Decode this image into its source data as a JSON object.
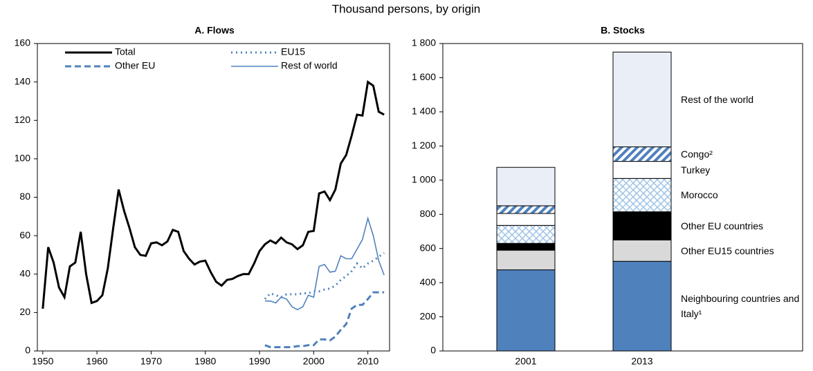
{
  "title": "Thousand persons, by origin",
  "chart_data": [
    {
      "type": "line",
      "title": "A. Flows",
      "x": [
        1950,
        1951,
        1952,
        1953,
        1954,
        1955,
        1956,
        1957,
        1958,
        1959,
        1960,
        1961,
        1962,
        1963,
        1964,
        1965,
        1966,
        1967,
        1968,
        1969,
        1970,
        1971,
        1972,
        1973,
        1974,
        1975,
        1976,
        1977,
        1978,
        1979,
        1980,
        1981,
        1982,
        1983,
        1984,
        1985,
        1986,
        1987,
        1988,
        1989,
        1990,
        1991,
        1992,
        1993,
        1994,
        1995,
        1996,
        1997,
        1998,
        1999,
        2000,
        2001,
        2002,
        2003,
        2004,
        2005,
        2006,
        2007,
        2008,
        2009,
        2010,
        2011,
        2012,
        2013
      ],
      "series": [
        {
          "name": "Total",
          "color": "#000000",
          "style": "solid",
          "width": 3,
          "values": [
            22,
            54,
            46,
            33,
            28,
            44,
            46,
            62,
            40,
            25,
            26,
            29,
            43,
            64,
            84,
            73,
            64,
            54,
            50,
            49.5,
            56,
            56.5,
            55,
            57,
            63,
            62,
            52,
            48,
            45,
            46.5,
            47,
            41,
            36,
            34,
            37,
            37.5,
            39,
            40,
            40,
            45.5,
            52,
            55.5,
            57.5,
            56,
            59,
            56.5,
            55.5,
            53,
            55,
            62,
            62.5,
            82,
            83,
            78.5,
            84,
            97.5,
            102,
            112,
            123,
            122.5,
            140,
            138,
            124.5,
            123
          ]
        },
        {
          "name": "EU15",
          "color": "#4f81bd",
          "style": "dotted",
          "width": 3,
          "values": [
            null,
            null,
            null,
            null,
            null,
            null,
            null,
            null,
            null,
            null,
            null,
            null,
            null,
            null,
            null,
            null,
            null,
            null,
            null,
            null,
            null,
            null,
            null,
            null,
            null,
            null,
            null,
            null,
            null,
            null,
            null,
            null,
            null,
            null,
            null,
            null,
            null,
            null,
            null,
            null,
            null,
            27,
            30,
            29,
            28,
            29.5,
            29.5,
            29.5,
            30,
            30,
            31,
            31,
            32,
            32.5,
            34,
            37,
            39,
            41.5,
            45.5,
            43,
            45.5,
            47,
            49,
            51
          ]
        },
        {
          "name": "Other EU",
          "color": "#4f81bd",
          "style": "dashed",
          "width": 3,
          "values": [
            null,
            null,
            null,
            null,
            null,
            null,
            null,
            null,
            null,
            null,
            null,
            null,
            null,
            null,
            null,
            null,
            null,
            null,
            null,
            null,
            null,
            null,
            null,
            null,
            null,
            null,
            null,
            null,
            null,
            null,
            null,
            null,
            null,
            null,
            null,
            null,
            null,
            null,
            null,
            null,
            null,
            3,
            2,
            2,
            2,
            2,
            2,
            2.5,
            2.5,
            3,
            3,
            6,
            6,
            5.5,
            7.5,
            11,
            14,
            22,
            24,
            24,
            27,
            30.5,
            30.5,
            30.5
          ]
        },
        {
          "name": "Rest of world",
          "color": "#4f81bd",
          "style": "solid",
          "width": 1.6,
          "values": [
            null,
            null,
            null,
            null,
            null,
            null,
            null,
            null,
            null,
            null,
            null,
            null,
            null,
            null,
            null,
            null,
            null,
            null,
            null,
            null,
            null,
            null,
            null,
            null,
            null,
            null,
            null,
            null,
            null,
            null,
            null,
            null,
            null,
            null,
            null,
            null,
            null,
            null,
            null,
            null,
            null,
            26,
            26,
            25,
            28,
            27,
            23,
            21.5,
            23,
            29,
            28,
            44,
            45,
            41,
            41.5,
            49.5,
            48,
            48,
            53,
            58,
            69,
            60,
            47,
            39.5
          ]
        }
      ],
      "xlim": [
        1949,
        2014
      ],
      "xticks": [
        1950,
        1960,
        1970,
        1980,
        1990,
        2000,
        2010
      ],
      "ylim": [
        0,
        160
      ],
      "yticks": [
        0,
        20,
        40,
        60,
        80,
        100,
        120,
        140,
        160
      ],
      "grid": false,
      "legend": "upper left"
    },
    {
      "type": "stacked_bar",
      "title": "B. Stocks",
      "categories": [
        "2001",
        "2013"
      ],
      "series": [
        {
          "name": "Neighbouring countries and Italy¹",
          "color": "#4f81bd",
          "pattern": "solid",
          "values": [
            475,
            525
          ]
        },
        {
          "name": "Other EU15 countries",
          "color": "#d9d9d9",
          "pattern": "solid",
          "values": [
            115,
            125
          ]
        },
        {
          "name": "Other EU countries",
          "color": "#000000",
          "pattern": "solid",
          "values": [
            40,
            165
          ]
        },
        {
          "name": "Morocco",
          "color": "#9dc3e6",
          "pattern": "crosshatch",
          "values": [
            105,
            195
          ]
        },
        {
          "name": "Turkey",
          "color": "#ffffff",
          "pattern": "solid",
          "values": [
            70,
            100
          ]
        },
        {
          "name": "Congo²",
          "color": "#4f81bd",
          "pattern": "stripes",
          "values": [
            45,
            85
          ]
        },
        {
          "name": "Rest of the world",
          "color": "#e9eef7",
          "pattern": "solid",
          "values": [
            225,
            555
          ]
        }
      ],
      "ylim": [
        0,
        1800
      ],
      "yticks": [
        0,
        200,
        400,
        600,
        800,
        {
          "value": 1000,
          "label": "1 000"
        },
        {
          "value": 1200,
          "label": "1 200"
        },
        {
          "value": 1400,
          "label": "1 400"
        },
        {
          "value": 1600,
          "label": "1 600"
        },
        {
          "value": 1800,
          "label": "1 800"
        }
      ],
      "grid": false
    }
  ]
}
